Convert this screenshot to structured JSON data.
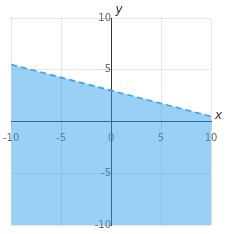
{
  "chart_data": {
    "type": "area",
    "x": [
      -10,
      10
    ],
    "series": [
      {
        "values": [
          5.5,
          0.5
        ],
        "line_style": "dashed"
      }
    ],
    "xlim": [
      -10,
      10
    ],
    "ylim": [
      -10,
      10
    ],
    "xticks": [
      -10,
      -5,
      0,
      5,
      10
    ],
    "yticks": [
      -10,
      -5,
      5,
      10
    ],
    "xlabel": "x",
    "ylabel": "y",
    "grid": true
  }
}
